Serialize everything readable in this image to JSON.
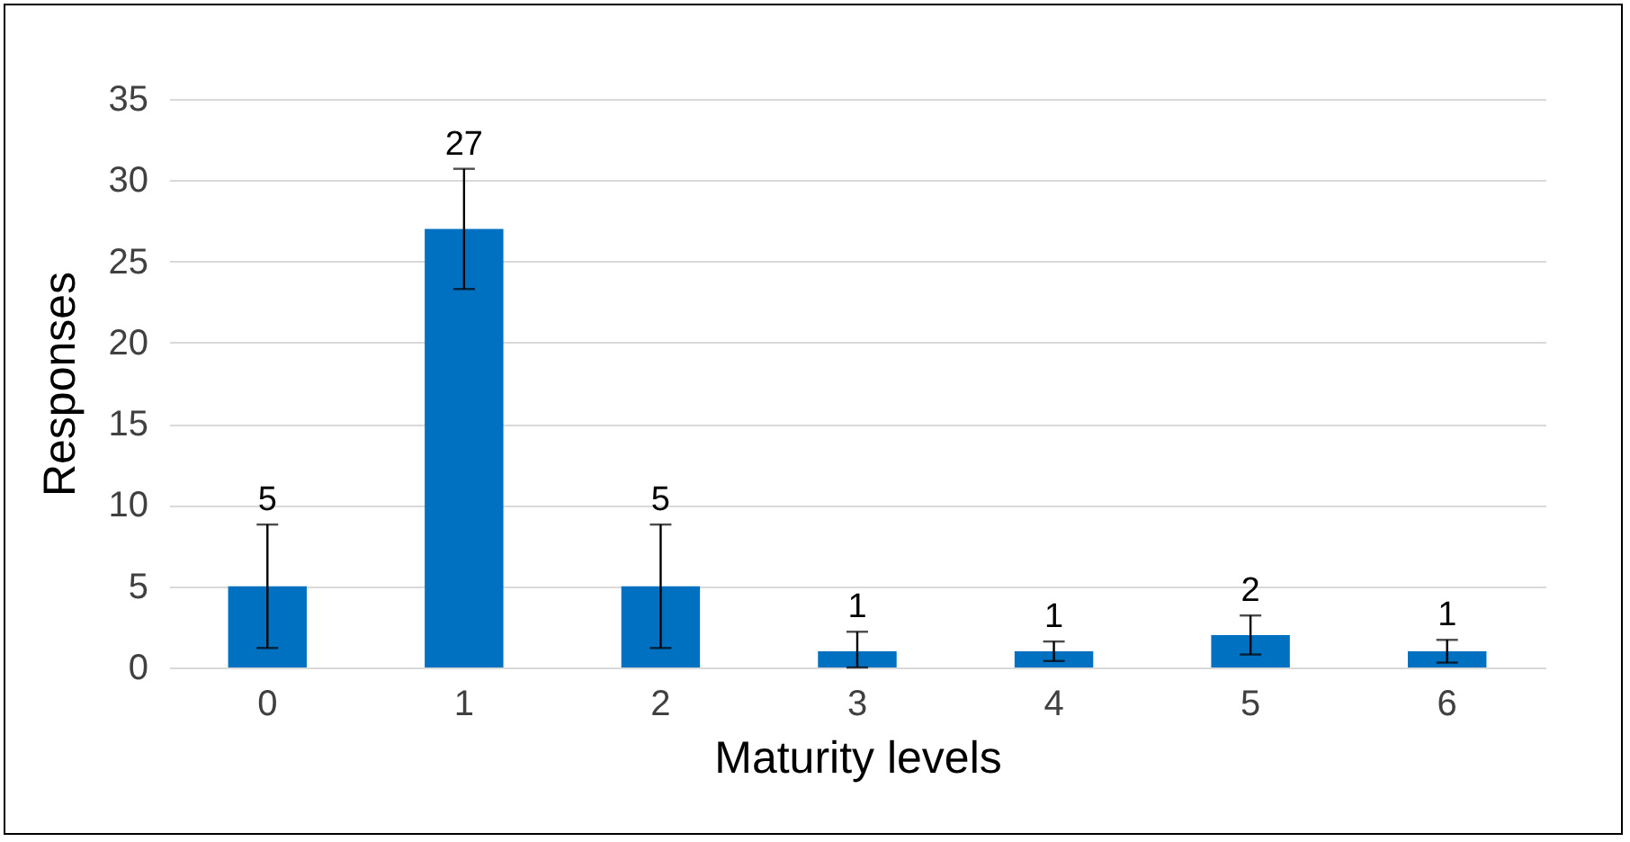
{
  "chart_data": {
    "type": "bar",
    "xlabel": "Maturity levels",
    "ylabel": "Responses",
    "categories": [
      "0",
      "1",
      "2",
      "3",
      "4",
      "5",
      "6"
    ],
    "values": [
      5,
      27,
      5,
      1,
      1,
      2,
      1
    ],
    "errors": [
      3.8,
      3.7,
      3.8,
      [
        0,
        2.2
      ],
      0.6,
      1.2,
      0.7
    ],
    "color": "#0070c0",
    "data_labels": true,
    "ylim": [
      0,
      35
    ],
    "yticks": [
      0,
      5,
      10,
      15,
      20,
      25,
      30,
      35
    ],
    "grid": "y"
  }
}
